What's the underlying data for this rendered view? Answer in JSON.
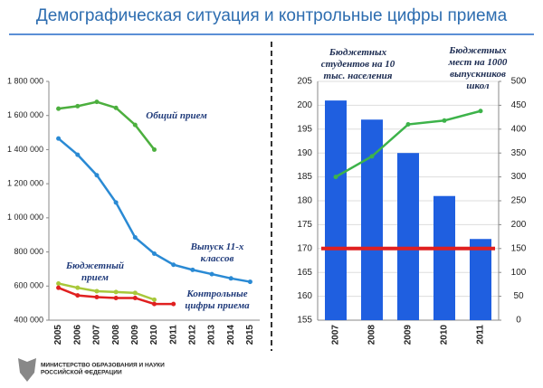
{
  "title": "Демографическая ситуация и контрольные цифры приема",
  "footer": [
    "МИНИСТЕРСТВО ОБРАЗОВАНИЯ И НАУКИ",
    "РОССИЙСКОЙ ФЕДЕРАЦИИ"
  ],
  "chart_data": [
    {
      "type": "line",
      "categories": [
        "2005",
        "2006",
        "2007",
        "2008",
        "2009",
        "2010",
        "2011",
        "2012",
        "2013",
        "2014",
        "2015"
      ],
      "ylim": [
        400000,
        1800000
      ],
      "yticks": [
        {
          "value": 400000,
          "label": "400 000"
        },
        {
          "value": 600000,
          "label": "600 000"
        },
        {
          "value": 800000,
          "label": "800 000"
        },
        {
          "value": 1000000,
          "label": "1 000 000"
        },
        {
          "value": 1200000,
          "label": "1 200 000"
        },
        {
          "value": 1400000,
          "label": "1 400 000"
        },
        {
          "value": 1600000,
          "label": "1 600 000"
        },
        {
          "value": 1800000,
          "label": "1 800 000"
        }
      ],
      "series": [
        {
          "name": "Общий прием",
          "color": "#4caf3e",
          "values": [
            1640000,
            1655000,
            1680000,
            1645000,
            1545000,
            1400000,
            null,
            null,
            null,
            null,
            null
          ]
        },
        {
          "name": "Выпуск 11-х классов",
          "color": "#2a8ad4",
          "values": [
            1465000,
            1370000,
            1250000,
            1090000,
            885000,
            790000,
            725000,
            695000,
            670000,
            645000,
            625000
          ]
        },
        {
          "name": "Бюджетный прием",
          "color": "#a8c83a",
          "values": [
            615000,
            590000,
            570000,
            565000,
            560000,
            520000,
            null,
            null,
            null,
            null,
            null
          ]
        },
        {
          "name": "Контрольные цифры приема",
          "color": "#e02020",
          "values": [
            590000,
            545000,
            535000,
            530000,
            530000,
            495000,
            495000,
            null,
            null,
            null,
            null
          ]
        }
      ]
    },
    {
      "type": "bar_line",
      "categories": [
        "2007",
        "2008",
        "2009",
        "2010",
        "2011"
      ],
      "ylim": [
        155,
        205
      ],
      "yticks": [
        155,
        160,
        165,
        170,
        175,
        180,
        185,
        190,
        195,
        200,
        205
      ],
      "y2lim": [
        0,
        500
      ],
      "y2ticks": [
        0,
        50,
        100,
        150,
        200,
        250,
        300,
        350,
        400,
        450,
        500
      ],
      "ylabel": "Бюджетных студентов на 10 тыс. населения",
      "y2label": "Бюджетных мест на 1000 выпускников школ",
      "hline": 170,
      "hline_color": "#e02020",
      "series": [
        {
          "type": "bar",
          "color": "#1f5fe0",
          "values": [
            201,
            197,
            190,
            181,
            172
          ]
        },
        {
          "type": "line",
          "axis": "y2",
          "color": "#3db34a",
          "values": [
            300,
            343,
            410,
            418,
            438
          ]
        }
      ]
    }
  ]
}
